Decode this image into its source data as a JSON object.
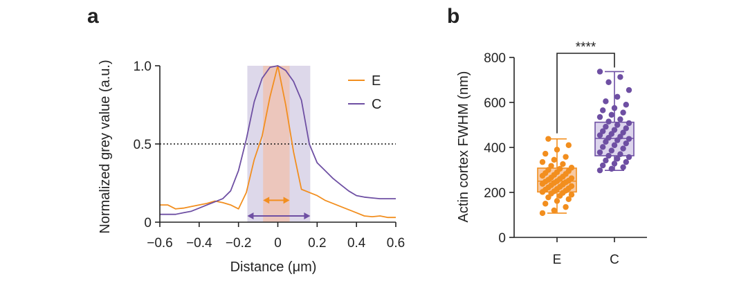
{
  "colors": {
    "E": "#f28e1e",
    "C": "#6e4fa3",
    "E_fill": "#f6c9a3",
    "C_fill": "#dcd4ec",
    "C_band": "#ddd8ea",
    "E_band": "#f0c2b0"
  },
  "chart_data": [
    {
      "panel_label": "a",
      "type": "line",
      "title": "",
      "xlabel": "Distance (μm)",
      "ylabel": "Normalized grey value (a.u.)",
      "xlim": [
        -0.6,
        0.6
      ],
      "ylim": [
        0,
        1.0
      ],
      "x_ticks": [
        -0.6,
        -0.4,
        -0.2,
        0,
        0.2,
        0.4,
        0.6
      ],
      "x_tick_labels": [
        "−0.6",
        "−0.4",
        "−0.2",
        "0",
        "0.2",
        "0.4",
        "0.6"
      ],
      "y_ticks": [
        0,
        0.5,
        1.0
      ],
      "y_tick_labels": [
        "0",
        "0.5",
        "1.0"
      ],
      "reference_line": {
        "y": 0.5,
        "style": "dotted"
      },
      "bands": [
        {
          "series": "C",
          "x0": -0.155,
          "x1": 0.165
        },
        {
          "series": "E",
          "x0": -0.075,
          "x1": 0.06
        }
      ],
      "fwhm_arrows": [
        {
          "series": "E",
          "x0": -0.075,
          "x1": 0.06,
          "y": 0.14
        },
        {
          "series": "C",
          "x0": -0.155,
          "x1": 0.165,
          "y": 0.04
        }
      ],
      "legend": [
        "E",
        "C"
      ],
      "legend_position": "top-right",
      "series": [
        {
          "name": "E",
          "x": [
            -0.6,
            -0.56,
            -0.52,
            -0.48,
            -0.44,
            -0.4,
            -0.36,
            -0.32,
            -0.28,
            -0.24,
            -0.2,
            -0.16,
            -0.12,
            -0.08,
            -0.04,
            0,
            0.04,
            0.08,
            0.12,
            0.16,
            0.2,
            0.24,
            0.28,
            0.32,
            0.36,
            0.4,
            0.44,
            0.48,
            0.52,
            0.56,
            0.6
          ],
          "y": [
            0.11,
            0.11,
            0.085,
            0.09,
            0.1,
            0.11,
            0.12,
            0.135,
            0.125,
            0.11,
            0.085,
            0.19,
            0.4,
            0.55,
            0.8,
            1.0,
            0.75,
            0.45,
            0.21,
            0.19,
            0.17,
            0.14,
            0.12,
            0.1,
            0.08,
            0.06,
            0.04,
            0.035,
            0.04,
            0.03,
            0.03
          ]
        },
        {
          "name": "C",
          "x": [
            -0.6,
            -0.56,
            -0.52,
            -0.48,
            -0.44,
            -0.4,
            -0.36,
            -0.32,
            -0.28,
            -0.24,
            -0.2,
            -0.16,
            -0.12,
            -0.08,
            -0.04,
            0,
            0.04,
            0.08,
            0.12,
            0.16,
            0.2,
            0.24,
            0.28,
            0.32,
            0.36,
            0.4,
            0.44,
            0.48,
            0.52,
            0.56,
            0.6
          ],
          "y": [
            0.05,
            0.05,
            0.05,
            0.06,
            0.07,
            0.09,
            0.11,
            0.13,
            0.15,
            0.2,
            0.33,
            0.53,
            0.77,
            0.92,
            0.99,
            1.0,
            0.97,
            0.9,
            0.78,
            0.5,
            0.38,
            0.33,
            0.28,
            0.24,
            0.2,
            0.17,
            0.16,
            0.155,
            0.15,
            0.15,
            0.15
          ]
        }
      ]
    },
    {
      "panel_label": "b",
      "type": "box",
      "title": "",
      "xlabel": "",
      "ylabel": "Actin cortex FWHM (nm)",
      "ylim": [
        0,
        800
      ],
      "y_ticks": [
        0,
        200,
        400,
        600,
        800
      ],
      "y_tick_labels": [
        "0",
        "200",
        "400",
        "600",
        "800"
      ],
      "categories": [
        "E",
        "C"
      ],
      "significance": {
        "between": [
          "E",
          "C"
        ],
        "label": "****"
      },
      "boxes": [
        {
          "name": "E",
          "min": 108,
          "q1": 202,
          "median": 250,
          "q3": 308,
          "max": 438,
          "points": [
            108,
            120,
            135,
            150,
            162,
            170,
            178,
            185,
            190,
            195,
            198,
            202,
            205,
            208,
            212,
            215,
            218,
            222,
            225,
            228,
            232,
            235,
            238,
            242,
            245,
            248,
            250,
            252,
            256,
            260,
            263,
            266,
            270,
            274,
            278,
            282,
            286,
            290,
            295,
            300,
            305,
            310,
            318,
            326,
            335,
            345,
            358,
            372,
            390,
            410,
            438
          ]
        },
        {
          "name": "C",
          "min": 298,
          "q1": 363,
          "median": 440,
          "q3": 512,
          "max": 737,
          "points": [
            298,
            305,
            312,
            320,
            328,
            335,
            342,
            350,
            357,
            363,
            370,
            378,
            386,
            395,
            402,
            410,
            418,
            425,
            432,
            438,
            443,
            448,
            454,
            460,
            466,
            472,
            478,
            485,
            492,
            500,
            508,
            515,
            525,
            535,
            545,
            555,
            565,
            575,
            590,
            605,
            625,
            655,
            690,
            713,
            737
          ]
        }
      ]
    }
  ]
}
